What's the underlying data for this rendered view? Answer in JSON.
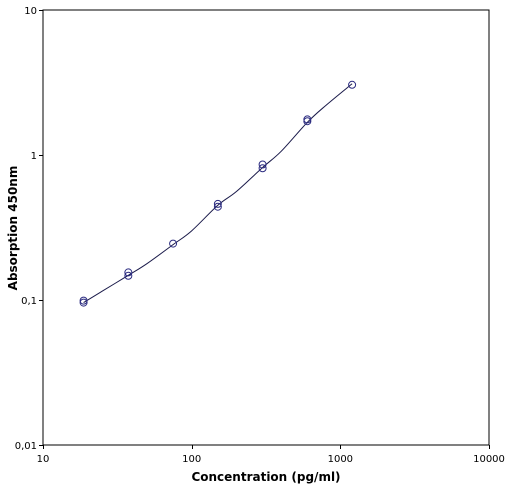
{
  "chart_data": {
    "type": "scatter",
    "title": "",
    "xlabel": "Concentration (pg/ml)",
    "ylabel": "Absorption 450nm",
    "x_scale": "log",
    "y_scale": "log",
    "xlim": [
      10,
      10000
    ],
    "ylim": [
      0.01,
      10
    ],
    "x_ticks": [
      10,
      100,
      1000,
      10000
    ],
    "x_tick_labels": [
      "10",
      "100",
      "1000",
      "10000"
    ],
    "y_ticks": [
      0.01,
      0.1,
      1,
      10
    ],
    "y_tick_labels": [
      "0,01",
      "0,1",
      "1",
      "10"
    ],
    "grid": false,
    "legend": "none",
    "series": [
      {
        "kind": "points",
        "marker": "circle",
        "color": "#2b2b80",
        "x": [
          18.75,
          18.75,
          37.5,
          37.5,
          75,
          150,
          150,
          300,
          300,
          600,
          600,
          1200
        ],
        "y": [
          0.096,
          0.099,
          0.147,
          0.155,
          0.245,
          0.44,
          0.46,
          0.81,
          0.86,
          1.71,
          1.76,
          3.05
        ]
      },
      {
        "kind": "fit-curve",
        "color": "#1a1a4a",
        "x": [
          18.75,
          25,
          37.5,
          50,
          75,
          100,
          150,
          200,
          300,
          400,
          600,
          800,
          1200
        ],
        "y": [
          0.096,
          0.115,
          0.148,
          0.178,
          0.241,
          0.3,
          0.45,
          0.56,
          0.82,
          1.06,
          1.68,
          2.2,
          3.1
        ]
      }
    ]
  }
}
